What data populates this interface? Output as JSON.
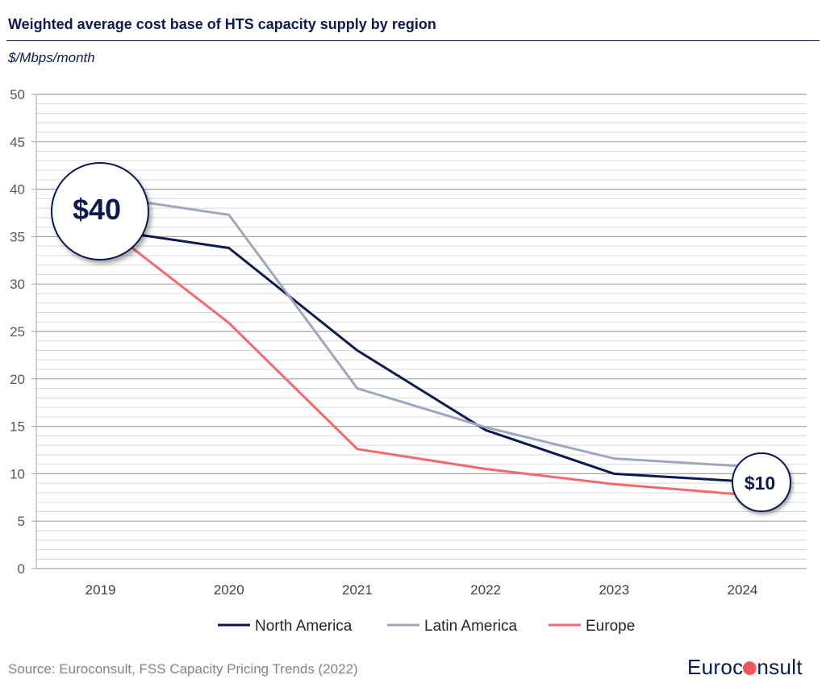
{
  "header": {
    "title": "Weighted average cost base of HTS capacity supply by region",
    "unit": "$/Mbps/month"
  },
  "footer": {
    "source": "Source: Euroconsult, FSS Capacity Pricing Trends (2022)",
    "logo_left": "Euroc",
    "logo_right": "nsult"
  },
  "chart_data": {
    "type": "line",
    "title": "Weighted average cost base of HTS capacity supply by region",
    "ylabel": "$/Mbps/month",
    "ylim": [
      0,
      50
    ],
    "yticks": [
      0,
      5,
      10,
      15,
      20,
      25,
      30,
      35,
      40,
      45,
      50
    ],
    "grid": true,
    "legend_placement": "bottom",
    "categories": [
      "2019",
      "2020",
      "2021",
      "2022",
      "2023",
      "2024"
    ],
    "series": [
      {
        "name": "North America",
        "color": "#0d1a4f",
        "values": [
          35.8,
          33.8,
          23.0,
          14.6,
          10.0,
          9.2
        ]
      },
      {
        "name": "Latin America",
        "color": "#a0a7bd",
        "values": [
          39.3,
          37.3,
          19.0,
          14.9,
          11.6,
          10.8
        ]
      },
      {
        "name": "Europe",
        "color": "#f26a6e",
        "values": [
          36.4,
          25.9,
          12.6,
          10.5,
          8.9,
          7.8
        ]
      }
    ],
    "annotations": [
      {
        "label": "$40",
        "category": "2019"
      },
      {
        "label": "$10",
        "category": "2024"
      }
    ]
  }
}
